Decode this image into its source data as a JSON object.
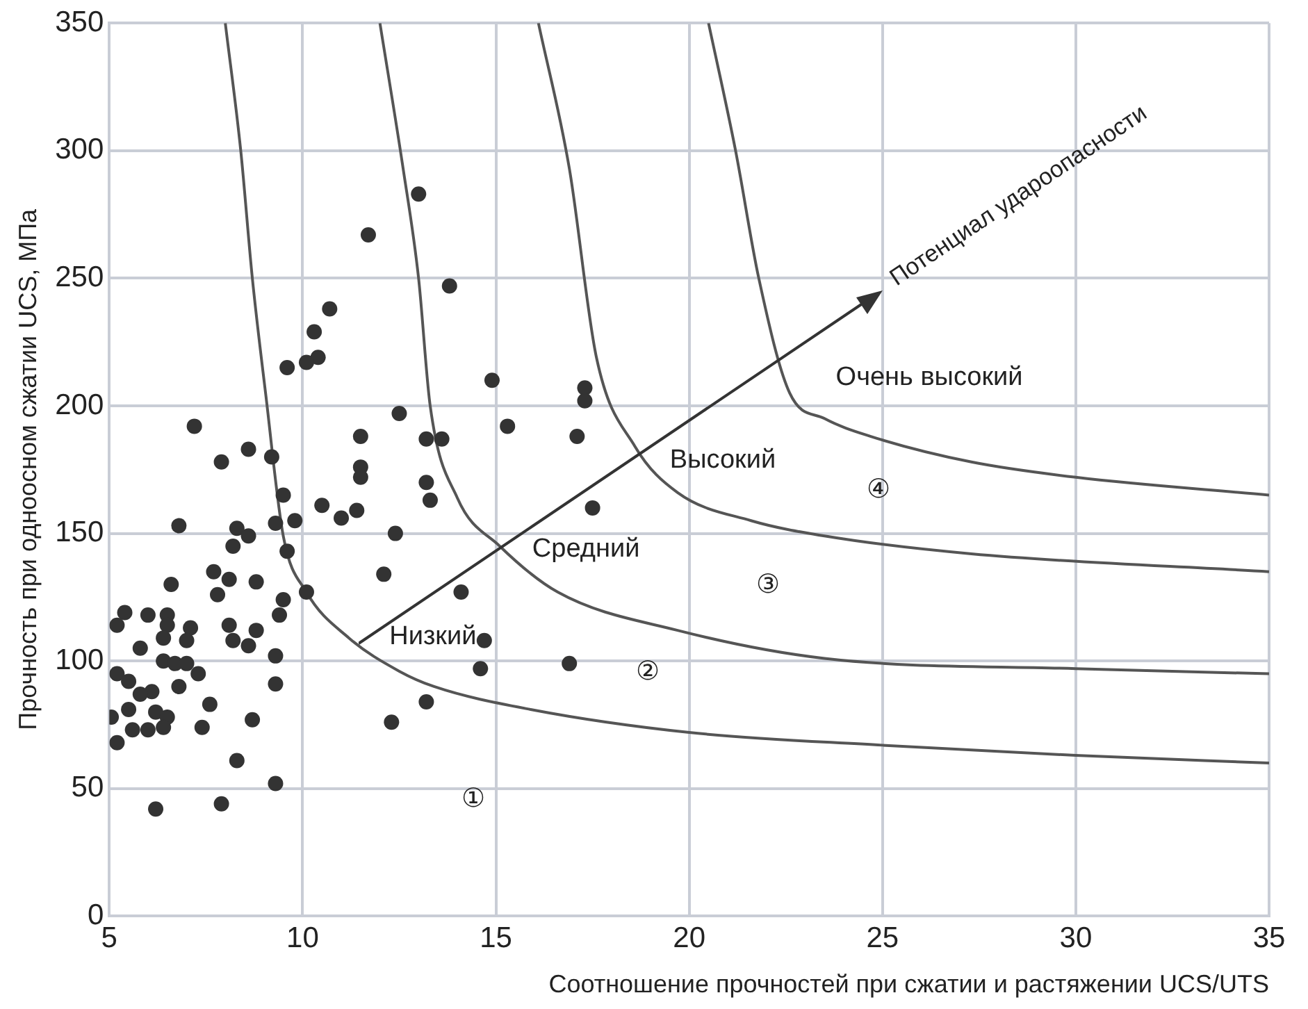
{
  "chart_data": {
    "type": "scatter",
    "xlabel": "Соотношение прочностей при сжатии и растяжении UCS/UTS",
    "ylabel": "Прочность при одноосном сжатии UCS, МПа",
    "xlim": [
      5,
      35
    ],
    "xticks": [
      5,
      10,
      15,
      20,
      25,
      30,
      35
    ],
    "ylim": [
      0,
      350
    ],
    "yticks": [
      0,
      50,
      100,
      150,
      200,
      250,
      300,
      350
    ],
    "grid": true,
    "legend": false,
    "marker": "circle",
    "series": [
      {
        "color": "#333333",
        "x": [
          7.2,
          8.6,
          7.9,
          9.2,
          11.5,
          11.5,
          11.5,
          9.5,
          10.5,
          11.0,
          11.4,
          6.8,
          8.3,
          8.6,
          9.3,
          9.8,
          8.2,
          9.6,
          7.7,
          8.1,
          6.6,
          8.8,
          7.8,
          10.1,
          9.5,
          9.4,
          5.4,
          5.2,
          6.0,
          6.5,
          6.5,
          7.1,
          8.1,
          8.8,
          6.4,
          7.0,
          8.2,
          8.6,
          5.8,
          9.3,
          6.4,
          6.7,
          7.0,
          7.3,
          5.2,
          5.5,
          6.8,
          9.3,
          6.1,
          5.8,
          7.6,
          5.05,
          5.5,
          6.2,
          6.5,
          6.4,
          5.6,
          6.0,
          7.4,
          8.7,
          5.2,
          8.3,
          9.3,
          6.2,
          7.9,
          13.0,
          11.7,
          13.8,
          10.7,
          10.3,
          10.4,
          10.1,
          9.6,
          14.9,
          17.3,
          17.3,
          12.5,
          15.3,
          13.2,
          13.6,
          17.1,
          13.2,
          13.3,
          17.5,
          12.4,
          12.1,
          14.1,
          14.7,
          14.6,
          16.9,
          13.2,
          12.3
        ],
        "values": [
          192,
          183,
          178,
          180,
          188,
          176,
          172,
          165,
          161,
          156,
          159,
          153,
          152,
          149,
          154,
          155,
          145,
          143,
          135,
          132,
          130,
          131,
          126,
          127,
          124,
          118,
          119,
          114,
          118,
          118,
          114,
          113,
          114,
          112,
          109,
          108,
          108,
          106,
          105,
          102,
          100,
          99,
          99,
          95,
          95,
          92,
          90,
          91,
          88,
          87,
          83,
          78,
          81,
          80,
          78,
          74,
          73,
          73,
          74,
          77,
          68,
          61,
          52,
          42,
          44,
          283,
          267,
          247,
          238,
          229,
          219,
          217,
          215,
          210,
          207,
          202,
          197,
          192,
          187,
          187,
          188,
          170,
          163,
          160,
          150,
          134,
          127,
          108,
          97,
          99,
          84,
          76
        ]
      },
      {
        "type": "line",
        "marker": "none",
        "color": "#555555",
        "x": [
          8.0,
          8.4,
          8.7,
          9.05,
          9.5,
          10.1,
          11.2,
          12.5,
          13.4,
          15.9,
          20,
          25,
          30,
          35
        ],
        "values": [
          350,
          300,
          250,
          204,
          149,
          127,
          109,
          96,
          90,
          81,
          72,
          67,
          63,
          60
        ]
      },
      {
        "type": "line",
        "marker": "none",
        "color": "#555555",
        "x": [
          12.0,
          12.6,
          13.0,
          13.3,
          14.0,
          15.1,
          16.6,
          19.7,
          23.5,
          30,
          35
        ],
        "values": [
          350,
          293,
          250,
          200,
          164,
          145,
          127,
          112,
          101,
          97,
          95
        ]
      },
      {
        "type": "line",
        "marker": "none",
        "color": "#555555",
        "x": [
          16.1,
          16.9,
          17.6,
          18.6,
          19.7,
          21.6,
          23.5,
          27.3,
          35
        ],
        "values": [
          350,
          293,
          219,
          184,
          166,
          155,
          149,
          142,
          135
        ]
      },
      {
        "type": "line",
        "marker": "none",
        "color": "#555555",
        "x": [
          20.5,
          21.2,
          21.8,
          22.6,
          23.5,
          24.7,
          27.3,
          30,
          35
        ],
        "values": [
          350,
          300,
          250,
          205,
          195,
          188,
          178,
          172,
          165
        ]
      }
    ],
    "annotations": [
      "Потенциал удароопасности",
      "Низкий",
      "Средний",
      "Высокий",
      "Очень высокий",
      "①",
      "②",
      "③",
      "④"
    ]
  }
}
